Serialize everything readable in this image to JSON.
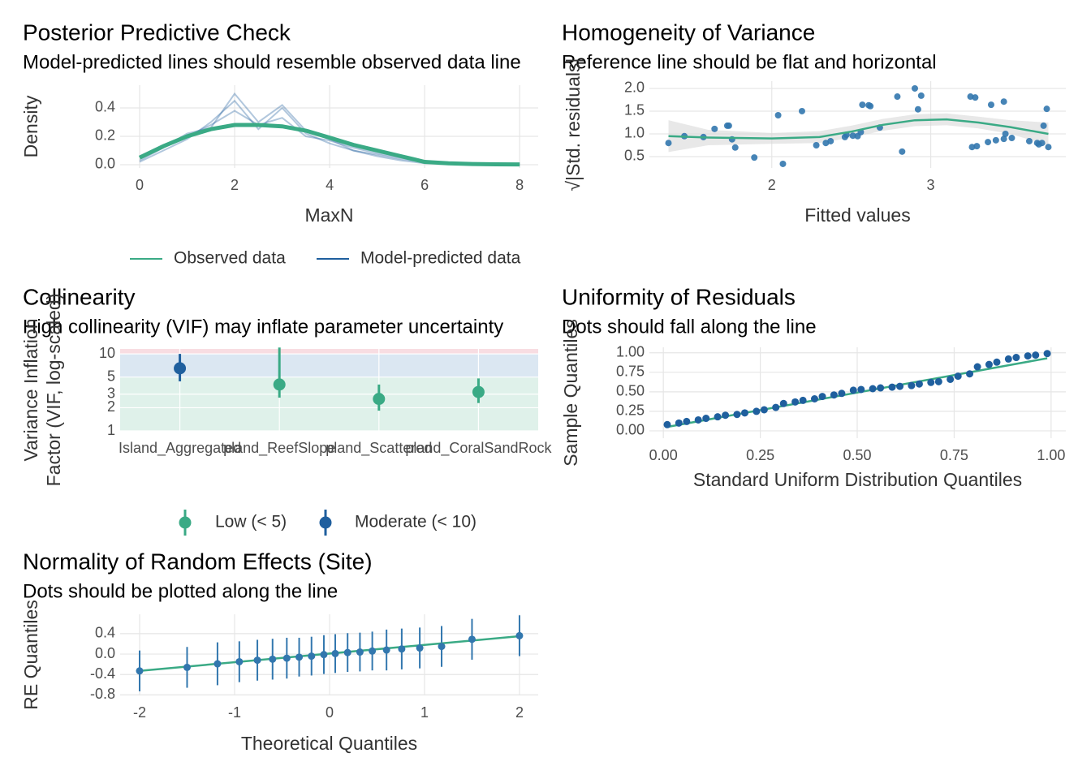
{
  "chart_data": [
    {
      "type": "line",
      "title": "Posterior Predictive Check",
      "subtitle": "Model-predicted lines should resemble observed data line",
      "x_label": "MaxN",
      "y_label": "Density",
      "x": [
        0,
        0.5,
        1,
        1.5,
        2,
        2.5,
        3,
        3.5,
        4,
        4.5,
        5,
        5.5,
        6,
        6.5,
        7,
        7.5,
        8
      ],
      "series": [
        {
          "name": "Observed data",
          "color": "#3aaa85",
          "values": [
            0.05,
            0.13,
            0.2,
            0.25,
            0.28,
            0.28,
            0.27,
            0.24,
            0.19,
            0.14,
            0.1,
            0.06,
            0.02,
            0.01,
            0.005,
            0.003,
            0.002
          ]
        },
        {
          "name": "Model-predicted data",
          "color": "#1f5f9e",
          "draws": [
            [
              0.02,
              0.1,
              0.18,
              0.3,
              0.45,
              0.25,
              0.4,
              0.22,
              0.15,
              0.1,
              0.07,
              0.04,
              0.02,
              0.01,
              0.005,
              0.002,
              0.001
            ],
            [
              0.06,
              0.14,
              0.2,
              0.28,
              0.38,
              0.28,
              0.33,
              0.2,
              0.17,
              0.12,
              0.08,
              0.05,
              0.02,
              0.01,
              0.004,
              0.002,
              0.001
            ],
            [
              0.03,
              0.12,
              0.22,
              0.26,
              0.5,
              0.3,
              0.42,
              0.24,
              0.18,
              0.1,
              0.06,
              0.03,
              0.01,
              0.008,
              0.004,
              0.002,
              0.001
            ]
          ]
        }
      ],
      "xlim": [
        -0.41,
        8.39
      ],
      "xticks": [
        0,
        2,
        4,
        6,
        8
      ],
      "ylim": [
        -0.023,
        0.56
      ],
      "yticks": [
        {
          "value": 0,
          "label": "0.0"
        },
        {
          "value": 0.2,
          "label": "0.2"
        },
        {
          "value": 0.4,
          "label": "0.4"
        }
      ],
      "grid": true
    },
    {
      "type": "scatter",
      "title": "Homogeneity of Variance",
      "subtitle": "Reference line should be flat and horizontal",
      "x_label": "Fitted values",
      "y_label": "√|Std. residuals|",
      "color": "#3277ae",
      "x": [
        1.35,
        1.45,
        1.57,
        1.64,
        1.72,
        1.73,
        1.75,
        1.77,
        1.89,
        2.04,
        2.07,
        2.19,
        2.28,
        2.34,
        2.37,
        2.46,
        2.47,
        2.51,
        2.54,
        2.56,
        2.57,
        2.61,
        2.62,
        2.68,
        2.79,
        2.82,
        2.9,
        2.92,
        2.94,
        3.25,
        3.28,
        3.26,
        3.29,
        3.36,
        3.38,
        3.41,
        3.46,
        3.47,
        3.51,
        3.46,
        3.62,
        3.67,
        3.68,
        3.71,
        3.74,
        3.73,
        3.7
      ],
      "y": [
        0.8,
        0.95,
        0.93,
        1.11,
        1.18,
        1.18,
        0.88,
        0.7,
        0.48,
        1.41,
        0.34,
        1.5,
        0.75,
        0.8,
        0.84,
        0.93,
        0.98,
        0.96,
        0.95,
        1.04,
        1.64,
        1.63,
        1.61,
        1.14,
        1.82,
        0.61,
        2.0,
        1.54,
        1.84,
        1.82,
        1.8,
        0.71,
        0.73,
        0.82,
        1.64,
        0.86,
        0.89,
        1.0,
        0.91,
        1.71,
        0.84,
        0.8,
        0.77,
        1.18,
        0.71,
        1.55,
        0.8
      ],
      "smooth": {
        "color": "#3aaa85",
        "band_color": "#d9d9d9",
        "x": [
          1.35,
          1.6,
          2.0,
          2.3,
          2.5,
          2.7,
          2.9,
          3.1,
          3.3,
          3.5,
          3.74
        ],
        "values": [
          0.95,
          0.92,
          0.9,
          0.93,
          1.05,
          1.2,
          1.3,
          1.32,
          1.25,
          1.15,
          1.0
        ],
        "lower": [
          0.6,
          0.75,
          0.78,
          0.8,
          0.92,
          1.07,
          1.17,
          1.19,
          1.12,
          1.0,
          0.75
        ],
        "upper": [
          1.3,
          1.09,
          1.02,
          1.06,
          1.18,
          1.33,
          1.43,
          1.45,
          1.38,
          1.3,
          1.25
        ]
      },
      "xlim": [
        1.23,
        3.85
      ],
      "xticks": [
        2,
        3
      ],
      "ylim": [
        0.25,
        2.16
      ],
      "yticks": [
        {
          "value": 0.5,
          "label": "0.5"
        },
        {
          "value": 1,
          "label": "1.0"
        },
        {
          "value": 1.5,
          "label": "1.5"
        },
        {
          "value": 2,
          "label": "2.0"
        }
      ],
      "grid": true
    },
    {
      "type": "dot",
      "title": "Collinearity",
      "subtitle": "High collinearity (VIF) may inflate parameter uncertainty",
      "y_label": [
        "Variance Inflation",
        "Factor (VIF, log-scaled)"
      ],
      "log_y": true,
      "categories": [
        "Island_Aggregated",
        "pland_ReefSlope",
        "pland_Scattered",
        "pland_CoralSandRock"
      ],
      "values": [
        6.5,
        4.0,
        2.6,
        3.2
      ],
      "lower": [
        4.4,
        2.7,
        1.83,
        2.3
      ],
      "upper": [
        10,
        12.1,
        4.0,
        4.8
      ],
      "point_colors": [
        "#1f5f9e",
        "#3aaa85",
        "#3aaa85",
        "#3aaa85"
      ],
      "zones": [
        {
          "from": 1,
          "to": 5,
          "color": "#dff1ea"
        },
        {
          "from": 5,
          "to": 10,
          "color": "#dbe7f2"
        },
        {
          "from": 10,
          "to": 12,
          "color": "#f8dde2"
        }
      ],
      "legend": [
        {
          "name": "Low (< 5)",
          "color": "#3aaa85"
        },
        {
          "name": "Moderate (< 10)",
          "color": "#1f5f9e"
        }
      ],
      "ylim": [
        1,
        11.6
      ],
      "yticks": [
        1,
        2,
        3,
        5,
        10
      ],
      "grid": true
    },
    {
      "type": "qq",
      "title": "Uniformity of Residuals",
      "subtitle": "Dots should fall along the line",
      "x_label": "Standard Uniform Distribution Quantiles",
      "y_label": "Sample Quantiles",
      "color": "#1f5f9e",
      "x": [
        0.01,
        0.04,
        0.06,
        0.09,
        0.11,
        0.14,
        0.16,
        0.19,
        0.21,
        0.24,
        0.26,
        0.29,
        0.31,
        0.34,
        0.36,
        0.39,
        0.41,
        0.44,
        0.46,
        0.49,
        0.51,
        0.54,
        0.56,
        0.59,
        0.61,
        0.64,
        0.66,
        0.69,
        0.71,
        0.74,
        0.76,
        0.79,
        0.81,
        0.84,
        0.86,
        0.89,
        0.91,
        0.94,
        0.96,
        0.99
      ],
      "y": [
        0.08,
        0.1,
        0.12,
        0.14,
        0.16,
        0.18,
        0.2,
        0.21,
        0.23,
        0.25,
        0.27,
        0.3,
        0.35,
        0.37,
        0.39,
        0.41,
        0.44,
        0.46,
        0.48,
        0.52,
        0.53,
        0.54,
        0.55,
        0.56,
        0.57,
        0.58,
        0.6,
        0.62,
        0.63,
        0.66,
        0.7,
        0.73,
        0.82,
        0.85,
        0.88,
        0.92,
        0.94,
        0.96,
        0.97,
        0.99
      ],
      "reference_line": {
        "color": "#3aaa85",
        "x": [
          0.01,
          0.99
        ],
        "y": [
          0.05,
          0.93
        ]
      },
      "xlim": [
        -0.036,
        1.038
      ],
      "xticks": [
        {
          "value": 0,
          "label": "0.00"
        },
        {
          "value": 0.25,
          "label": "0.25"
        },
        {
          "value": 0.5,
          "label": "0.50"
        },
        {
          "value": 0.75,
          "label": "0.75"
        },
        {
          "value": 1,
          "label": "1.00"
        }
      ],
      "ylim": [
        -0.094,
        1.07
      ],
      "yticks": [
        {
          "value": 0,
          "label": "0.00"
        },
        {
          "value": 0.25,
          "label": "0.25"
        },
        {
          "value": 0.5,
          "label": "0.50"
        },
        {
          "value": 0.75,
          "label": "0.75"
        },
        {
          "value": 1,
          "label": "1.00"
        }
      ],
      "grid": true
    },
    {
      "type": "qq",
      "title": "Normality of Random Effects (Site)",
      "subtitle": "Dots should be plotted along the line",
      "x_label": "Theoretical Quantiles",
      "y_label": "RE Quantiles",
      "color": "#3277ae",
      "x": [
        -2,
        -1.5,
        -1.18,
        -0.95,
        -0.76,
        -0.6,
        -0.45,
        -0.32,
        -0.19,
        -0.06,
        0.06,
        0.19,
        0.32,
        0.45,
        0.6,
        0.76,
        0.95,
        1.18,
        1.5,
        2
      ],
      "y": [
        -0.33,
        -0.26,
        -0.19,
        -0.15,
        -0.12,
        -0.1,
        -0.08,
        -0.06,
        -0.04,
        -0.01,
        0.01,
        0.03,
        0.04,
        0.06,
        0.08,
        0.1,
        0.12,
        0.15,
        0.29,
        0.36
      ],
      "errors": [
        0.4,
        0.4,
        0.42,
        0.4,
        0.4,
        0.4,
        0.4,
        0.38,
        0.38,
        0.38,
        0.38,
        0.38,
        0.38,
        0.38,
        0.4,
        0.4,
        0.4,
        0.4,
        0.4,
        0.4
      ],
      "reference_line": {
        "color": "#3aaa85",
        "x": [
          -2,
          2
        ],
        "y": [
          -0.33,
          0.35
        ]
      },
      "xlim": [
        -2.205,
        2.197
      ],
      "xticks": [
        -2,
        -1,
        0,
        1,
        2
      ],
      "ylim": [
        -0.81,
        0.78
      ],
      "yticks": [
        {
          "value": 0.4,
          "label": "0.4"
        },
        {
          "value": 0,
          "label": "0.0"
        },
        {
          "value": -0.4,
          "label": "-0.4"
        },
        {
          "value": -0.8,
          "label": "-0.8"
        }
      ],
      "grid": true
    }
  ]
}
